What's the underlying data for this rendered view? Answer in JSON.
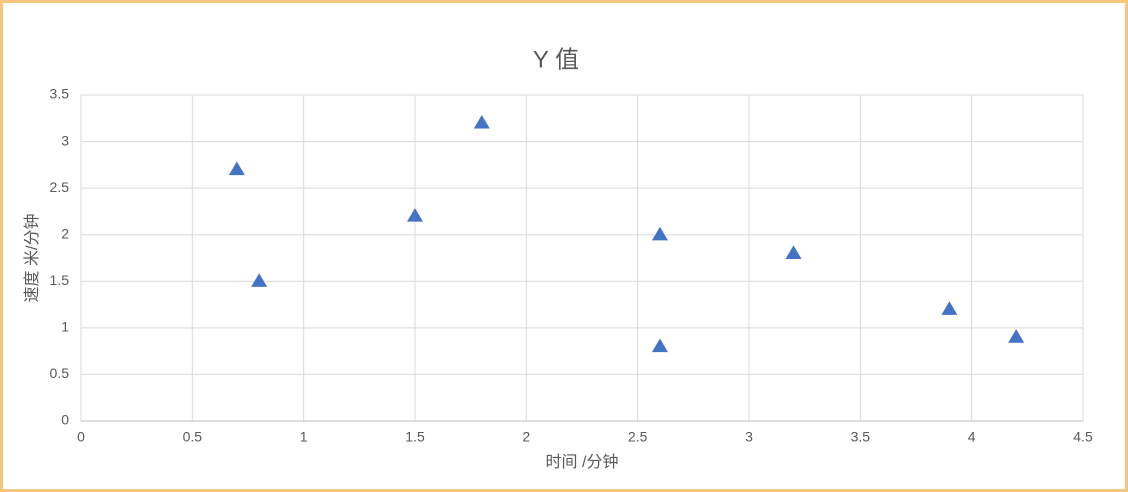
{
  "chart_data": {
    "type": "scatter",
    "title": "Y 值",
    "x_label": "时间 /分钟",
    "y_label": "速度 米/分钟",
    "series": [
      {
        "name": "Y 值",
        "color": "#4472c4",
        "x": [
          0.7,
          0.8,
          1.5,
          1.8,
          2.6,
          2.6,
          3.2,
          3.9,
          4.2
        ],
        "values": [
          2.7,
          1.5,
          2.2,
          3.2,
          2.0,
          0.8,
          1.8,
          1.2,
          0.9
        ]
      }
    ],
    "xlim": [
      0,
      4.5
    ],
    "xticks": [
      0,
      0.5,
      1,
      1.5,
      2,
      2.5,
      3,
      3.5,
      4,
      4.5
    ],
    "ylim": [
      0,
      3.5
    ],
    "yticks": [
      0,
      0.5,
      1,
      1.5,
      2,
      2.5,
      3,
      3.5
    ],
    "grid": true,
    "marker": "triangle"
  }
}
